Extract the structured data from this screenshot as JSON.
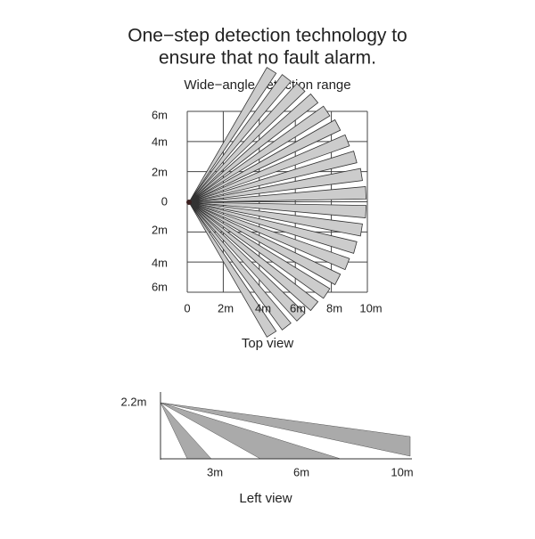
{
  "header": {
    "title_lines": [
      "One−step detection technology to",
      "ensure that no fault alarm."
    ],
    "subtitle": "Wide−angle detection range"
  },
  "top_view": {
    "y_labels": [
      "6m",
      "4m",
      "2m",
      "0",
      "2m",
      "4m",
      "6m"
    ],
    "x_labels": [
      "0",
      "2m",
      "4m",
      "6m",
      "8m",
      "10m"
    ],
    "caption": "Top view"
  },
  "left_view": {
    "height_label": "2.2m",
    "x_labels": [
      "3m",
      "6m",
      "10m"
    ],
    "caption": "Left view"
  }
}
